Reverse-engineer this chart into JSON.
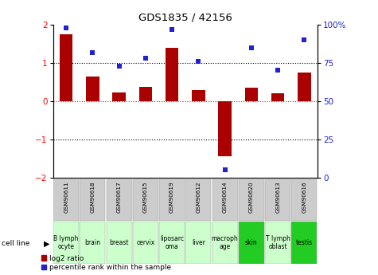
{
  "title": "GDS1835 / 42156",
  "samples": [
    "GSM90611",
    "GSM90618",
    "GSM90617",
    "GSM90615",
    "GSM90619",
    "GSM90612",
    "GSM90614",
    "GSM90620",
    "GSM90613",
    "GSM90616"
  ],
  "cell_lines": [
    "B lymph\nocyte",
    "brain",
    "breast",
    "cervix",
    "liposarc\noma",
    "liver",
    "macroph\nage",
    "skin",
    "T lymph\noblast",
    "testis"
  ],
  "log2_ratio": [
    1.75,
    0.65,
    0.22,
    0.38,
    1.4,
    0.28,
    -1.45,
    0.35,
    0.2,
    0.75
  ],
  "percentile_rank": [
    98,
    82,
    73,
    78,
    97,
    76,
    5,
    85,
    70,
    90
  ],
  "bar_color": "#aa0000",
  "dot_color": "#2222cc",
  "background_color": "#ffffff",
  "cell_line_colors": [
    "#ccffcc",
    "#ccffcc",
    "#ccffcc",
    "#ccffcc",
    "#ccffcc",
    "#ccffcc",
    "#ccffcc",
    "#22cc22",
    "#ccffcc",
    "#22cc22"
  ],
  "gsm_bg_color": "#cccccc",
  "ylim": [
    -2,
    2
  ],
  "y2lim": [
    0,
    100
  ],
  "yticks": [
    -2,
    -1,
    0,
    1,
    2
  ],
  "y2ticks": [
    0,
    25,
    50,
    75,
    100
  ],
  "y2ticklabels": [
    "0",
    "25",
    "50",
    "75",
    "100%"
  ]
}
